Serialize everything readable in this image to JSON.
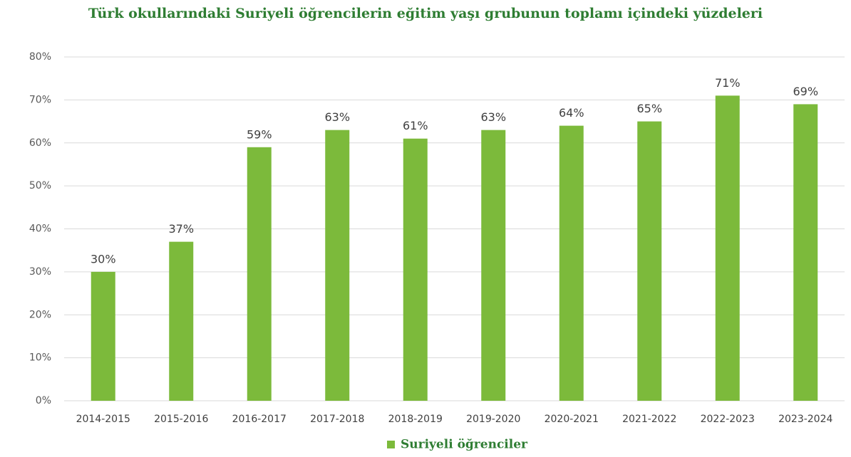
{
  "chart_data": {
    "type": "bar",
    "title": "Türk okullarındaki Suriyeli öğrencilerin eğitim yaşı grubunun toplamı içindeki yüzdeleri",
    "categories": [
      "2014-2015",
      "2015-2016",
      "2016-2017",
      "2017-2018",
      "2018-2019",
      "2019-2020",
      "2020-2021",
      "2021-2022",
      "2022-2023",
      "2023-2024"
    ],
    "series": [
      {
        "name": "Suriyeli öğrenciler",
        "color": "#7cba3b",
        "values": [
          30,
          37,
          59,
          63,
          61,
          63,
          64,
          65,
          71,
          69
        ],
        "value_labels": [
          "30%",
          "37%",
          "59%",
          "63%",
          "61%",
          "63%",
          "64%",
          "65%",
          "71%",
          "69%"
        ]
      }
    ],
    "ylim": [
      0,
      80
    ],
    "yticks": [
      {
        "value": 0,
        "label": "0%"
      },
      {
        "value": 10,
        "label": "10%"
      },
      {
        "value": 20,
        "label": "20%"
      },
      {
        "value": 30,
        "label": "30%"
      },
      {
        "value": 40,
        "label": "40%"
      },
      {
        "value": 50,
        "label": "50%"
      },
      {
        "value": 60,
        "label": "60%"
      },
      {
        "value": 70,
        "label": "70%"
      },
      {
        "value": 80,
        "label": "80%"
      }
    ],
    "grid": true,
    "legend": "bottom"
  }
}
